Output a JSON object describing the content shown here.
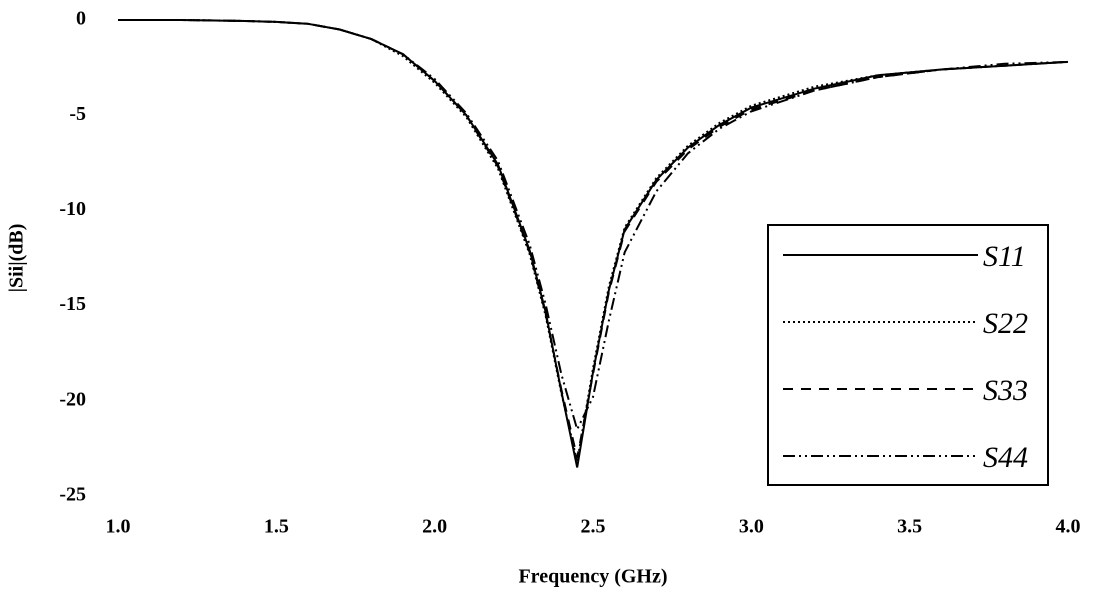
{
  "chart_data": {
    "type": "line",
    "x_label": "Frequency (GHz)",
    "y_label": "|Sii|(dB)",
    "x": [
      1.0,
      1.2,
      1.4,
      1.5,
      1.6,
      1.7,
      1.8,
      1.9,
      2.0,
      2.1,
      2.2,
      2.3,
      2.35,
      2.4,
      2.45,
      2.5,
      2.55,
      2.6,
      2.7,
      2.8,
      2.9,
      3.0,
      3.2,
      3.4,
      3.6,
      3.8,
      4.0
    ],
    "series": [
      {
        "name": "S11",
        "color": "#000000",
        "dash": "solid",
        "values": [
          0,
          0,
          -0.05,
          -0.1,
          -0.2,
          -0.5,
          -1.0,
          -1.8,
          -3.2,
          -5.0,
          -7.6,
          -12.1,
          -15.3,
          -19.5,
          -23.5,
          -18.5,
          -14.2,
          -11.0,
          -8.4,
          -6.7,
          -5.5,
          -4.6,
          -3.6,
          -2.9,
          -2.6,
          -2.4,
          -2.2
        ]
      },
      {
        "name": "S22",
        "color": "#000000",
        "dash": "dotted",
        "values": [
          0,
          0,
          -0.05,
          -0.1,
          -0.2,
          -0.5,
          -1.0,
          -1.9,
          -3.3,
          -5.1,
          -7.8,
          -12.3,
          -15.5,
          -19.6,
          -23.2,
          -18.3,
          -14.0,
          -10.9,
          -8.3,
          -6.6,
          -5.4,
          -4.5,
          -3.5,
          -2.9,
          -2.6,
          -2.4,
          -2.2
        ]
      },
      {
        "name": "S33",
        "color": "#000000",
        "dash": "dashed",
        "values": [
          0,
          0,
          -0.05,
          -0.1,
          -0.2,
          -0.5,
          -1.0,
          -1.8,
          -3.2,
          -5.0,
          -7.7,
          -12.2,
          -15.4,
          -19.4,
          -23.0,
          -18.6,
          -14.3,
          -11.1,
          -8.5,
          -6.8,
          -5.6,
          -4.7,
          -3.7,
          -3.0,
          -2.6,
          -2.4,
          -2.2
        ]
      },
      {
        "name": "S44",
        "color": "#000000",
        "dash": "dashdot",
        "values": [
          0,
          0,
          -0.05,
          -0.1,
          -0.2,
          -0.5,
          -1.0,
          -1.8,
          -3.1,
          -4.9,
          -7.4,
          -11.8,
          -14.9,
          -18.6,
          -21.5,
          -19.8,
          -15.8,
          -12.2,
          -9.0,
          -7.0,
          -5.7,
          -4.8,
          -3.7,
          -3.0,
          -2.6,
          -2.3,
          -2.2
        ]
      }
    ],
    "xlim": [
      1.0,
      4.0
    ],
    "ylim": [
      -25,
      0
    ],
    "xticks": [
      {
        "value": 1.0,
        "label": "1.0"
      },
      {
        "value": 1.5,
        "label": "1.5"
      },
      {
        "value": 2.0,
        "label": "2.0"
      },
      {
        "value": 2.5,
        "label": "2.5"
      },
      {
        "value": 3.0,
        "label": "3.0"
      },
      {
        "value": 3.5,
        "label": "3.5"
      },
      {
        "value": 4.0,
        "label": "4.0"
      }
    ],
    "yticks": [
      0,
      -5,
      -10,
      -15,
      -20,
      -25
    ],
    "grid": false,
    "legend": "lower right"
  }
}
